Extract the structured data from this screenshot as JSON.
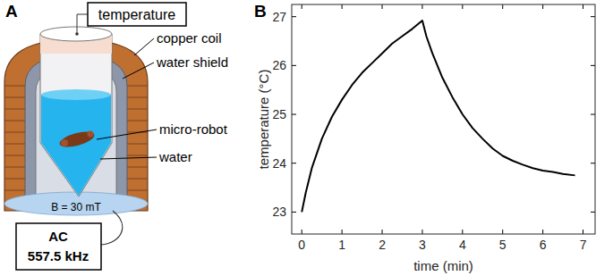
{
  "panel_letters": [
    "A",
    "B"
  ],
  "diagram": {
    "sensor_label": "temperature",
    "labels": [
      "copper coil",
      "water shield",
      "micro-robot",
      "water"
    ],
    "field_label": "B = 30 mT",
    "source_lines": [
      "AC",
      "557.5 kHz"
    ]
  },
  "chart_data": {
    "type": "line",
    "x_label": "time (min)",
    "y_label": "temperature (°C)",
    "x": [
      0,
      0.1,
      0.25,
      0.5,
      0.75,
      1.0,
      1.25,
      1.5,
      1.75,
      2.0,
      2.25,
      2.5,
      2.75,
      3.0,
      3.1,
      3.25,
      3.5,
      3.75,
      4.0,
      4.25,
      4.5,
      4.75,
      5.0,
      5.25,
      5.5,
      5.75,
      6.0,
      6.25,
      6.5,
      6.8
    ],
    "values": [
      23.0,
      23.4,
      23.9,
      24.5,
      24.95,
      25.3,
      25.6,
      25.85,
      26.05,
      26.25,
      26.45,
      26.6,
      26.75,
      26.92,
      26.6,
      26.25,
      25.75,
      25.35,
      25.0,
      24.72,
      24.5,
      24.3,
      24.15,
      24.05,
      23.97,
      23.9,
      23.85,
      23.82,
      23.78,
      23.75
    ],
    "color": "#000000",
    "xlim": [
      -0.25,
      7.3
    ],
    "ylim": [
      22.55,
      27.25
    ],
    "xticks": [
      0,
      1,
      2,
      3,
      4,
      5,
      6,
      7
    ],
    "yticks": [
      23,
      24,
      25,
      26,
      27
    ],
    "grid": false
  }
}
